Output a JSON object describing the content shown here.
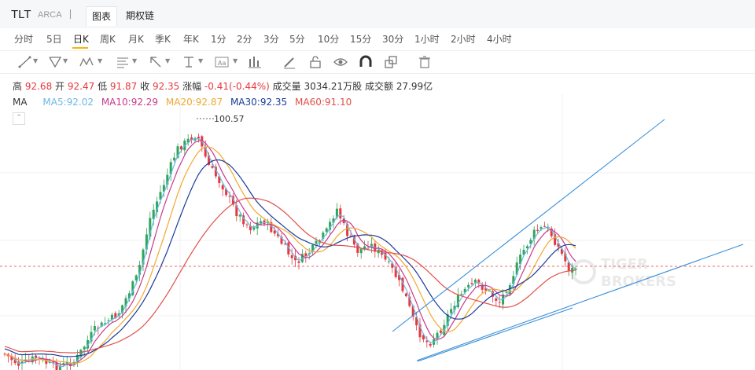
{
  "header": {
    "symbol": "TLT",
    "exchange": "ARCA",
    "tabs": [
      {
        "label": "图表",
        "active": true
      },
      {
        "label": "期权链",
        "active": false
      }
    ]
  },
  "periods": {
    "items": [
      "分时",
      "5日",
      "日K",
      "周K",
      "月K",
      "季K",
      "年K",
      "1分",
      "2分",
      "3分",
      "5分",
      "10分",
      "15分",
      "30分",
      "1小时",
      "2小时",
      "4小时"
    ],
    "active": "日K"
  },
  "toolbar": {
    "tools": [
      "line-tool-icon",
      "pitchfork-tool-icon",
      "pattern-tool-icon",
      "fib-tool-icon",
      "arrow-tool-icon",
      "measure-tool-icon",
      "text-tool-icon",
      "bar-pattern-icon",
      "pencil-icon",
      "lock-icon",
      "eye-icon",
      "magnet-icon",
      "layers-icon",
      "trash-icon"
    ]
  },
  "quote": {
    "high_label": "高",
    "high": "92.68",
    "open_label": "开",
    "open": "92.47",
    "low_label": "低",
    "low": "91.87",
    "close_label": "收",
    "close": "92.35",
    "chg_label": "涨幅",
    "chg": "-0.41(-0.44%)",
    "vol_label": "成交量",
    "vol": "3034.21万股",
    "amt_label": "成交额",
    "amt": "27.99亿"
  },
  "ma": {
    "label": "MA",
    "ma5": "MA5:92.02",
    "ma10": "MA10:92.29",
    "ma20": "MA20:92.87",
    "ma30": "MA30:92.35",
    "ma60": "MA60:91.10"
  },
  "colors": {
    "ma5": "#6cb8e6",
    "ma10": "#c93a8c",
    "ma20": "#f0a830",
    "ma30": "#1a3c9c",
    "ma60": "#e0504a",
    "up": "#2fa55a",
    "down": "#e6393f",
    "trend": "#3a8fd8",
    "price_line": "#e6393f"
  },
  "chart": {
    "max_label": "100.57",
    "watermark_1": "TIGER",
    "watermark_2": "BROKERS"
  }
}
